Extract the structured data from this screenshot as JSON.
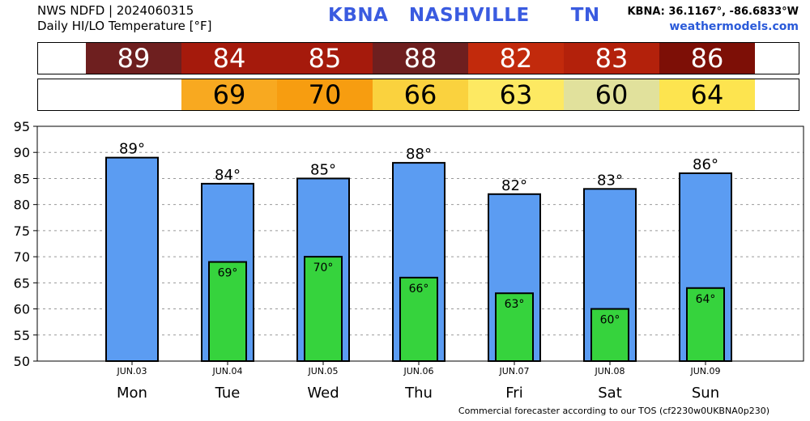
{
  "header": {
    "source": "NWS NDFD | 2024060315",
    "product": "Daily HI/LO Temperature [°F]",
    "station": "KBNA   NASHVILLE      TN",
    "coords": "KBNA: 36.1167°, -86.6833°W",
    "site": "weathermodels.com"
  },
  "hi_strip": [
    {
      "value": "89",
      "color": "#6e1f1f"
    },
    {
      "value": "84",
      "color": "#a51a0c"
    },
    {
      "value": "85",
      "color": "#a51a0c"
    },
    {
      "value": "88",
      "color": "#6e1f1f"
    },
    {
      "value": "82",
      "color": "#c22a0c"
    },
    {
      "value": "83",
      "color": "#b3210b"
    },
    {
      "value": "86",
      "color": "#7d0f06"
    }
  ],
  "lo_strip": [
    {
      "value": "",
      "color": "#ffffff"
    },
    {
      "value": "69",
      "color": "#f8a920"
    },
    {
      "value": "70",
      "color": "#f79d10"
    },
    {
      "value": "66",
      "color": "#fad23e"
    },
    {
      "value": "63",
      "color": "#fde962"
    },
    {
      "value": "60",
      "color": "#e1e19c"
    },
    {
      "value": "64",
      "color": "#fde44f"
    }
  ],
  "footer": "Commercial forecaster according to our TOS (cf2230w0UKBNA0p230)",
  "chart_data": {
    "type": "bar",
    "categories": [
      "Mon",
      "Tue",
      "Wed",
      "Thu",
      "Fri",
      "Sat",
      "Sun"
    ],
    "dates": [
      "JUN.03",
      "JUN.04",
      "JUN.05",
      "JUN.06",
      "JUN.07",
      "JUN.08",
      "JUN.09"
    ],
    "series": [
      {
        "values": [
          89,
          84,
          85,
          88,
          82,
          83,
          86
        ],
        "color": "#5b9cf2",
        "labels": [
          "89°",
          "84°",
          "85°",
          "88°",
          "82°",
          "83°",
          "86°"
        ]
      },
      {
        "values": [
          null,
          69,
          70,
          66,
          63,
          60,
          64
        ],
        "color": "#36d33d",
        "labels": [
          "",
          "69°",
          "70°",
          "66°",
          "63°",
          "60°",
          "64°"
        ]
      }
    ],
    "ylim": [
      50,
      95
    ],
    "yticks": [
      50,
      55,
      60,
      65,
      70,
      75,
      80,
      85,
      90,
      95
    ],
    "grid": true
  }
}
